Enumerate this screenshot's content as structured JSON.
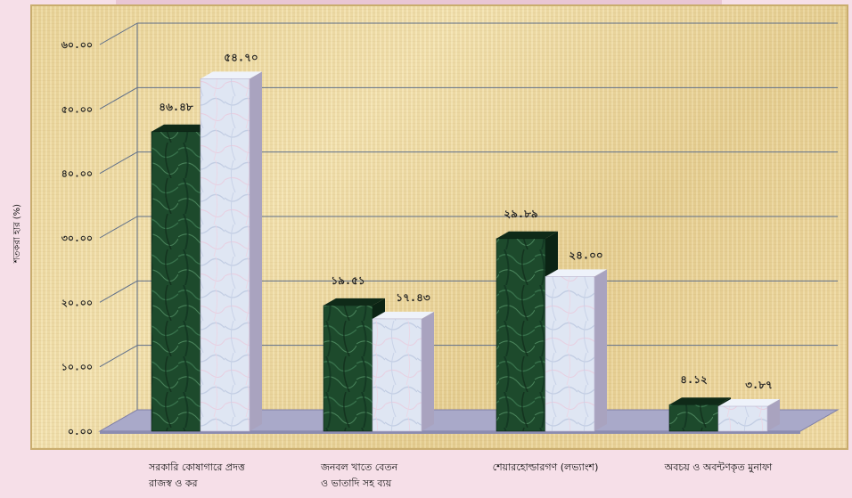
{
  "chart_data": {
    "type": "bar",
    "style": "3d-column",
    "ylabel": "শতকরা হার (%)",
    "ylim": [
      0,
      60
    ],
    "grid": true,
    "legend": "none",
    "yticks": [
      "০.০০",
      "১০.০০",
      "২০.০০",
      "৩০.০০",
      "৪০.০০",
      "৫০.০০",
      "৬০.০০"
    ],
    "categories": [
      [
        "সরকারি কোষাগারে প্রদত্ত",
        "রাজস্ব ও কর"
      ],
      [
        "জনবল খাতে বেতন",
        "ও ভাতাদি সহ ব্যয়"
      ],
      [
        "শেয়ারহোল্ডারগণ (লভ্যাংশ)"
      ],
      [
        "অবচয় ও অবন্টণকৃত মুনাফা"
      ]
    ],
    "series": [
      {
        "values": [
          46.48,
          19.51,
          29.89,
          4.12
        ],
        "labels": [
          "৪৬.৪৮",
          "১৯.৫১",
          "২৯.৮৯",
          "৪.১২"
        ],
        "color": "#1d4a2c"
      },
      {
        "values": [
          54.7,
          17.43,
          24.0,
          3.87
        ],
        "labels": [
          "৫৪.৭০",
          "১৭.৪৩",
          "২৪.০০",
          "৩.৮৭"
        ],
        "color": "#dfe6f3"
      }
    ]
  }
}
